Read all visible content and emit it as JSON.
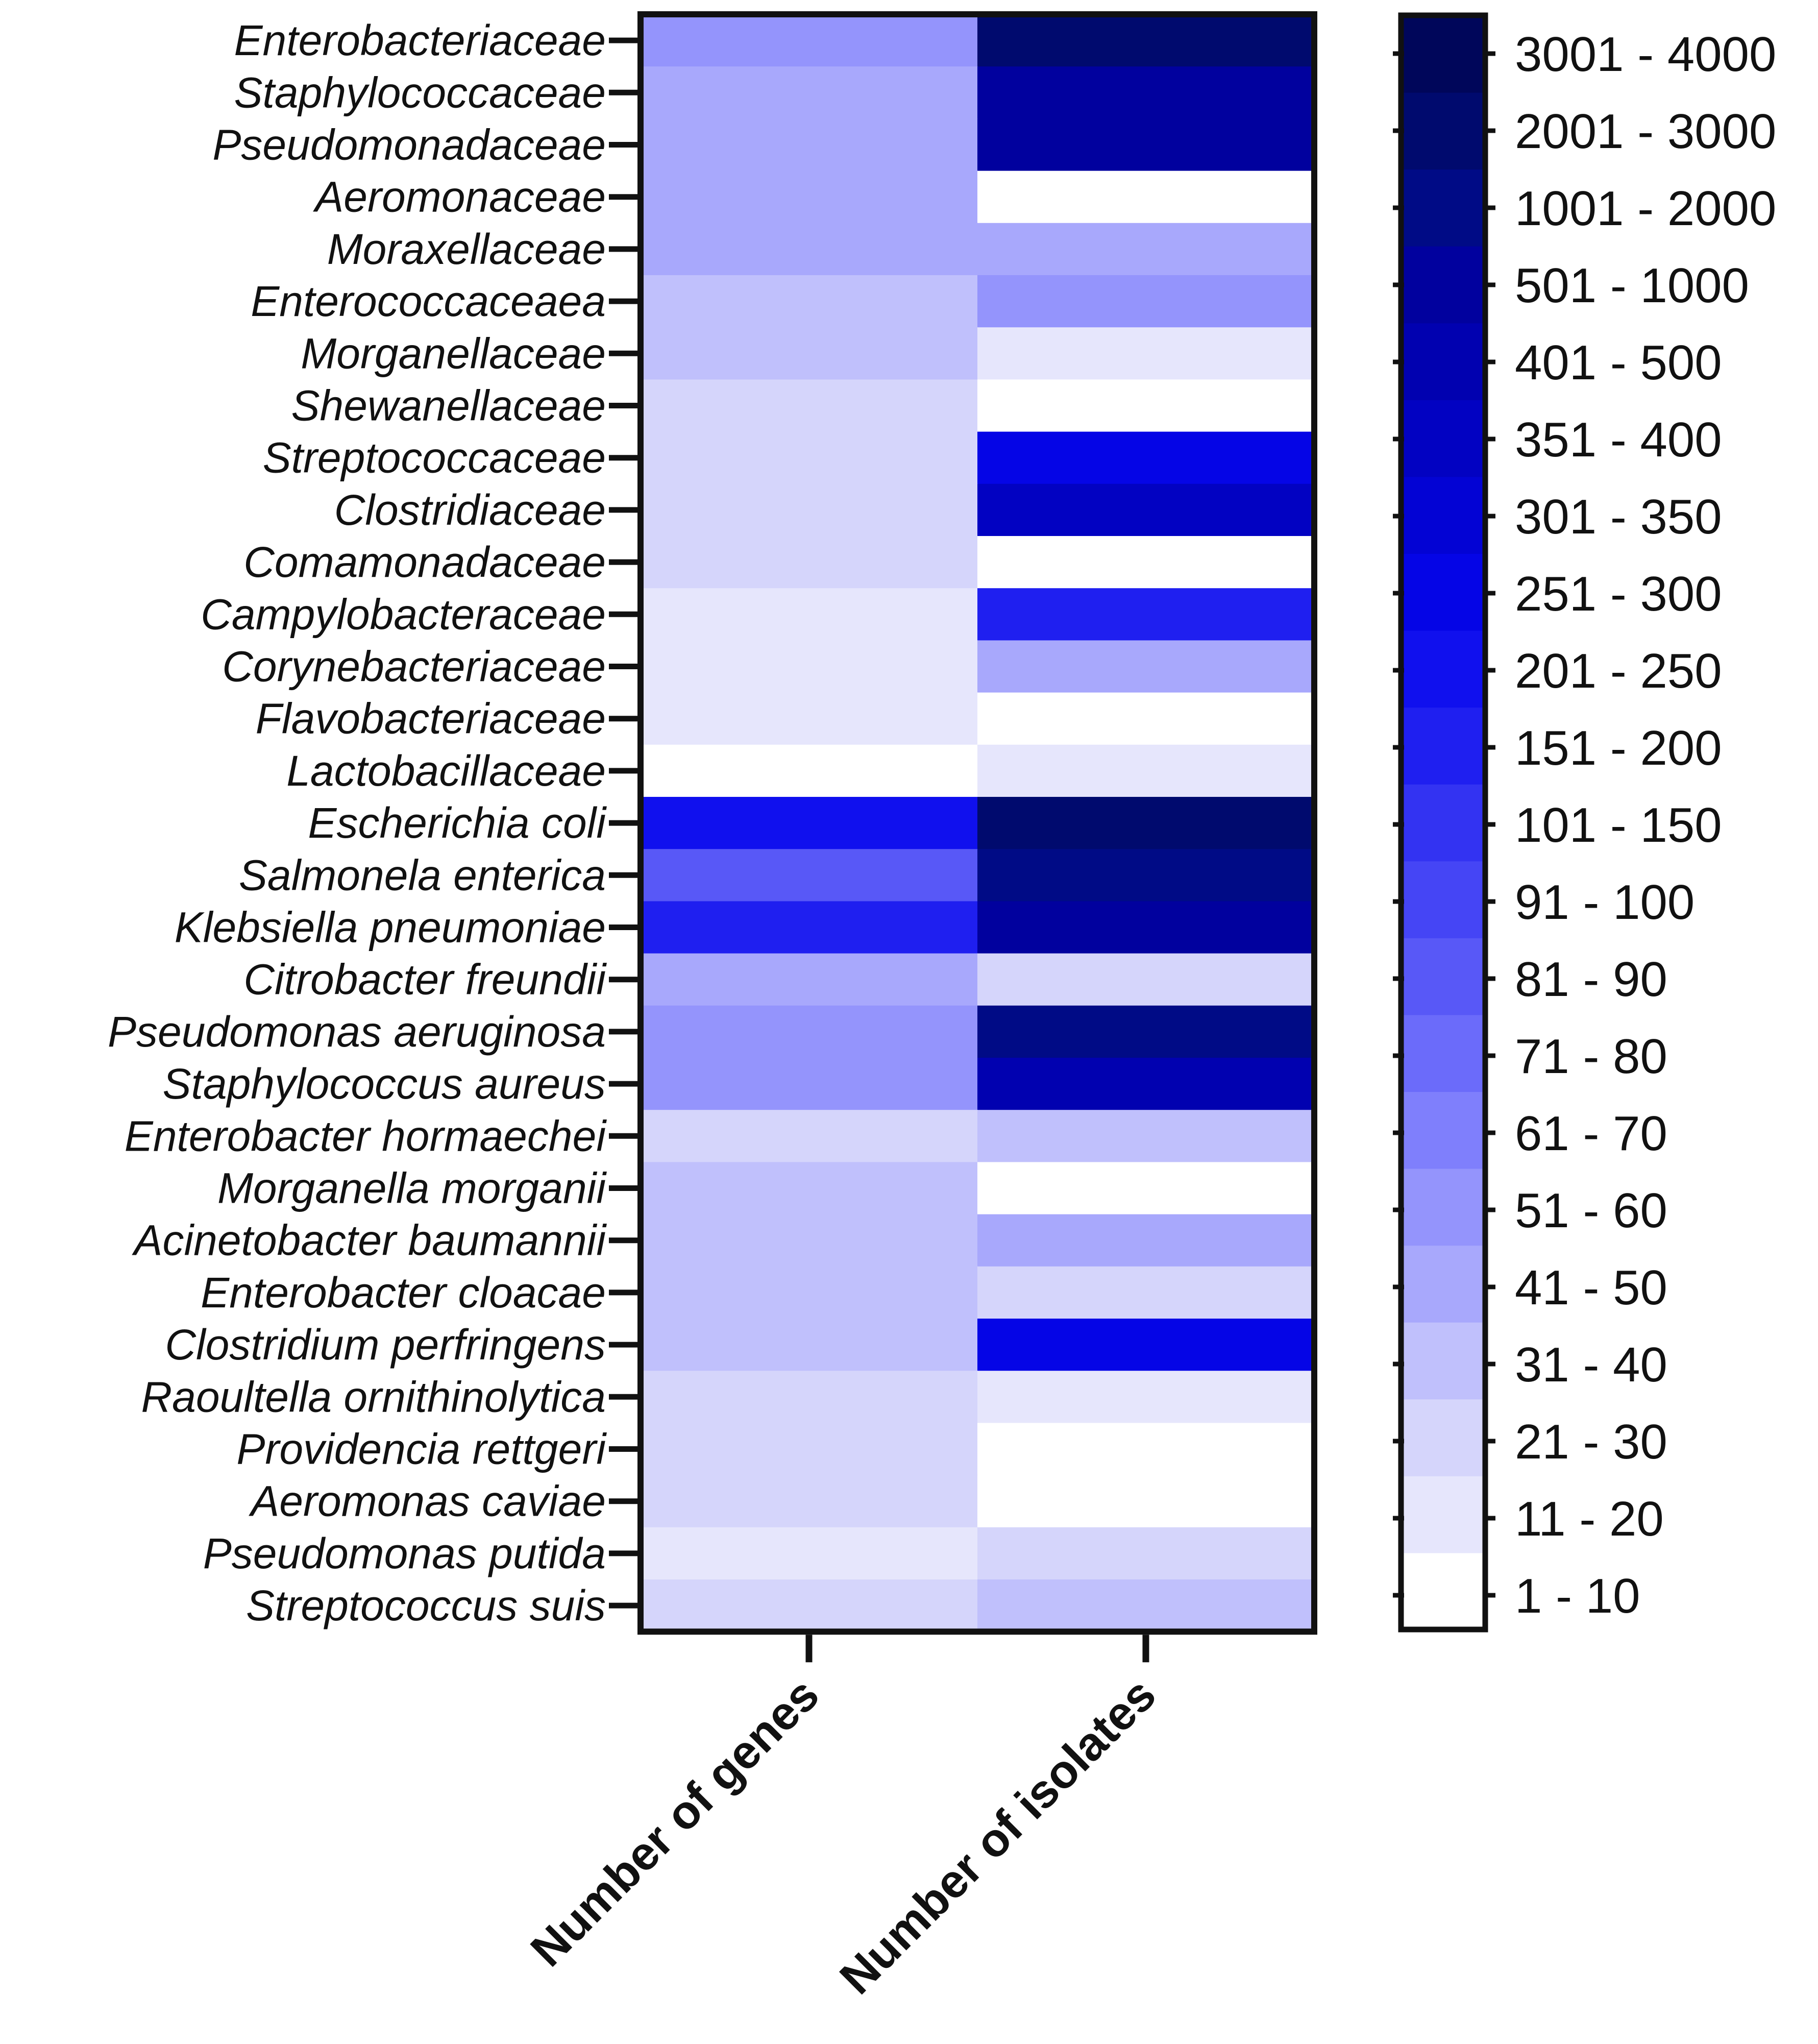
{
  "chart_data": {
    "type": "heatmap",
    "title": "",
    "columns": [
      "Number of genes",
      "Number of isolates"
    ],
    "rows": [
      "Enterobacteriaceae",
      "Staphylococcaceae",
      "Pseudomonadaceae",
      "Aeromonaceae",
      "Moraxellaceae",
      "Enterococcaceaea",
      "Morganellaceae",
      "Shewanellaceae",
      "Streptococcaceae",
      "Clostridiaceae",
      "Comamonadaceae",
      "Campylobacteraceae",
      "Corynebacteriaceae",
      "Flavobacteriaceae",
      "Lactobacillaceae",
      "Escherichia coli",
      "Salmonela enterica",
      "Klebsiella pneumoniae",
      "Citrobacter freundii",
      "Pseudomonas aeruginosa",
      "Staphylococcus aureus",
      "Enterobacter hormaechei",
      "Morganella morganii",
      "Acinetobacter baumannii",
      "Enterobacter cloacae",
      "Clostridium perfringens",
      "Raoultella ornithinolytica",
      "Providencia rettgeri",
      "Aeromonas caviae",
      "Pseudomonas putida",
      "Streptococcus suis"
    ],
    "bin_index": [
      [
        5,
        19
      ],
      [
        4,
        17
      ],
      [
        4,
        17
      ],
      [
        4,
        0
      ],
      [
        4,
        4
      ],
      [
        3,
        5
      ],
      [
        3,
        1
      ],
      [
        2,
        0
      ],
      [
        2,
        13
      ],
      [
        2,
        15
      ],
      [
        2,
        0
      ],
      [
        1,
        11
      ],
      [
        1,
        4
      ],
      [
        1,
        0
      ],
      [
        0,
        1
      ],
      [
        12,
        19
      ],
      [
        8,
        18
      ],
      [
        11,
        17
      ],
      [
        4,
        2
      ],
      [
        5,
        18
      ],
      [
        5,
        16
      ],
      [
        2,
        3
      ],
      [
        3,
        0
      ],
      [
        3,
        4
      ],
      [
        3,
        2
      ],
      [
        3,
        13
      ],
      [
        2,
        1
      ],
      [
        2,
        0
      ],
      [
        2,
        0
      ],
      [
        1,
        2
      ],
      [
        2,
        3
      ]
    ],
    "legend": {
      "bins": [
        "1 - 10",
        "11 - 20",
        "21 - 30",
        "31 - 40",
        "41 - 50",
        "51 - 60",
        "61 - 70",
        "71 - 80",
        "81 - 90",
        "91 - 100",
        "101 - 150",
        "151 - 200",
        "201 - 250",
        "251 - 300",
        "301 - 350",
        "351 - 400",
        "401 - 500",
        "501 - 1000",
        "1001 - 2000",
        "2001 - 3000",
        "3001 - 4000"
      ],
      "colors": [
        "#ffffff",
        "#e6e6fc",
        "#d5d5fb",
        "#c0c0fc",
        "#a8a8fc",
        "#9494fc",
        "#7f7ffc",
        "#6b6bfa",
        "#5858f7",
        "#4545f5",
        "#3333f2",
        "#1f1ff0",
        "#1010ee",
        "#0505e6",
        "#0303d4",
        "#0202c2",
        "#0101b0",
        "#01019e",
        "#000b86",
        "#000a6e",
        "#00065a"
      ]
    }
  }
}
